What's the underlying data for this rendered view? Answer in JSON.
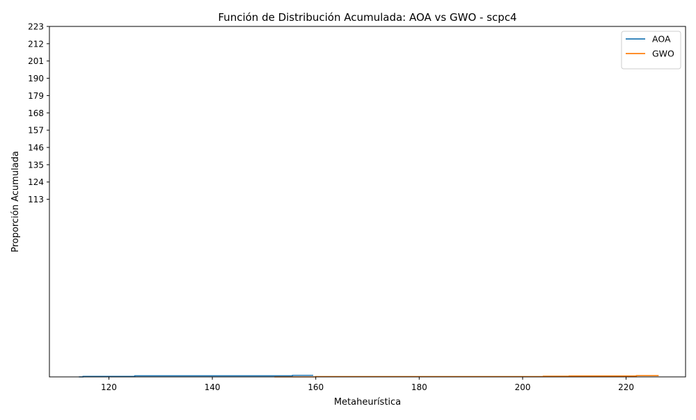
{
  "chart_data": {
    "type": "line",
    "title": "Función de Distribución Acumulada: AOA vs GWO - scpc4",
    "xlabel": "Metaheurística",
    "ylabel": "Proporción Acumulada",
    "xlim": [
      108.5,
      231.5
    ],
    "ylim": [
      0,
      223
    ],
    "x_ticks": [
      120,
      140,
      160,
      180,
      200,
      220
    ],
    "y_ticks": [
      113,
      124,
      135,
      146,
      157,
      168,
      179,
      190,
      201,
      212,
      223
    ],
    "grid": false,
    "legend_position": "top-right",
    "series": [
      {
        "name": "AOA",
        "color": "#1f77b4",
        "step": "post",
        "points": [
          [
            114.2,
            0.0
          ],
          [
            115.0,
            0.33
          ],
          [
            125.0,
            0.67
          ],
          [
            155.5,
            1.0
          ],
          [
            159.5,
            1.0
          ]
        ]
      },
      {
        "name": "GWO",
        "color": "#ff7f0e",
        "step": "post",
        "points": [
          [
            152.0,
            0.0
          ],
          [
            160.0,
            0.2
          ],
          [
            204.0,
            0.4
          ],
          [
            209.0,
            0.6
          ],
          [
            222.0,
            0.8
          ],
          [
            226.3,
            0.8
          ]
        ]
      }
    ]
  }
}
